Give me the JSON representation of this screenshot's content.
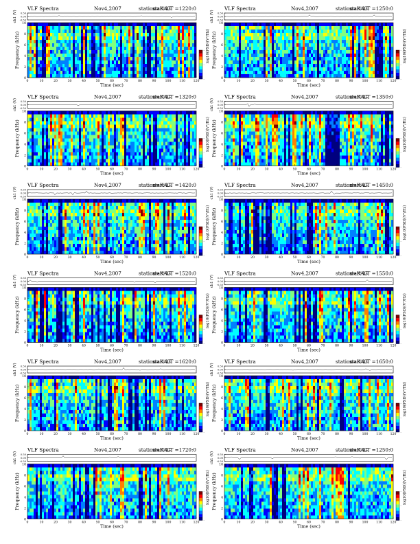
{
  "chart_data": [
    {
      "type": "heatmap",
      "title": "VLF Spectra",
      "date": "Nov4,2007",
      "station": "station=KAG",
      "start": "start  UT =1220:0",
      "trace_ylabel": "ch1 (V)",
      "trace_ticks": [
        "0.50",
        "0.00",
        "-0.50"
      ],
      "ylabel": "Frequency (kHz)",
      "yticks": [
        "0",
        "2",
        "4",
        "6",
        "8",
        "10"
      ],
      "ylim": [
        0,
        10
      ],
      "xlabel": "Time (sec)",
      "xticks": [
        "0",
        "10",
        "20",
        "30",
        "40",
        "50",
        "60",
        "70",
        "80",
        "90",
        "100",
        "110",
        "120"
      ],
      "xlim": [
        0,
        120
      ],
      "colorbar_label": "log10(PSD)(V²/Hz)",
      "colorbar_ticks": [
        "-",
        "-",
        "-"
      ]
    },
    {
      "type": "heatmap",
      "title": "VLF Spectra",
      "date": "Nov4,2007",
      "station": "station=KAG",
      "start": "start  UT =1250:0",
      "trace_ylabel": "ch1 (V)",
      "trace_ticks": [
        "0.50",
        "0.00",
        "-0.50"
      ],
      "ylabel": "Frequency (kHz)",
      "yticks": [
        "0",
        "2",
        "4",
        "6",
        "8",
        "10"
      ],
      "ylim": [
        0,
        10
      ],
      "xlabel": "Time (sec)",
      "xticks": [
        "0",
        "10",
        "20",
        "30",
        "40",
        "50",
        "60",
        "70",
        "80",
        "90",
        "100",
        "110",
        "120"
      ],
      "xlim": [
        0,
        120
      ],
      "colorbar_label": "log10(PSD)(V²/Hz)",
      "colorbar_ticks": [
        "-",
        "-",
        "-"
      ]
    },
    {
      "type": "heatmap",
      "title": "VLF Spectra",
      "date": "Nov4,2007",
      "station": "station=KAG",
      "start": "start  UT =1320:0",
      "trace_ylabel": "ch1 (V)",
      "trace_ticks": [
        "0.50",
        "0.00",
        "-0.50"
      ],
      "ylabel": "Frequency (kHz)",
      "yticks": [
        "0",
        "2",
        "4",
        "6",
        "8",
        "10"
      ],
      "ylim": [
        0,
        10
      ],
      "xlabel": "Time (sec)",
      "xticks": [
        "0",
        "10",
        "20",
        "30",
        "40",
        "50",
        "60",
        "70",
        "80",
        "90",
        "100",
        "110",
        "120"
      ],
      "xlim": [
        0,
        120
      ],
      "colorbar_label": "log10(PSD)(V²/Hz)",
      "colorbar_ticks": [
        "-",
        "-",
        "-"
      ]
    },
    {
      "type": "heatmap",
      "title": "VLF Spectra",
      "date": "Nov4,2007",
      "station": "station=KAG",
      "start": "start  UT =1350:0",
      "trace_ylabel": "ch1 (V)",
      "trace_ticks": [
        "0.50",
        "0.00",
        "-0.50"
      ],
      "ylabel": "Frequency (kHz)",
      "yticks": [
        "0",
        "2",
        "4",
        "6",
        "8",
        "10"
      ],
      "ylim": [
        0,
        10
      ],
      "xlabel": "Time (sec)",
      "xticks": [
        "0",
        "10",
        "20",
        "30",
        "40",
        "50",
        "60",
        "70",
        "80",
        "90",
        "100",
        "110",
        "120"
      ],
      "xlim": [
        0,
        120
      ],
      "colorbar_label": "log10(PSD)(V²/Hz)",
      "colorbar_ticks": [
        "-",
        "-",
        "-"
      ]
    },
    {
      "type": "heatmap",
      "title": "VLF Spectra",
      "date": "Nov4,2007",
      "station": "station=KAG",
      "start": "start  UT =1420:0",
      "trace_ylabel": "ch1 (V)",
      "trace_ticks": [
        "0.50",
        "0.00",
        "-0.50"
      ],
      "ylabel": "Frequency (kHz)",
      "yticks": [
        "0",
        "2",
        "4",
        "6",
        "8",
        "10"
      ],
      "ylim": [
        0,
        10
      ],
      "xlabel": "Time (sec)",
      "xticks": [
        "0",
        "10",
        "20",
        "30",
        "40",
        "50",
        "60",
        "70",
        "80",
        "90",
        "100",
        "110",
        "120"
      ],
      "xlim": [
        0,
        120
      ],
      "colorbar_label": "log10(PSD)(V²/Hz)",
      "colorbar_ticks": [
        "-",
        "-",
        "-"
      ]
    },
    {
      "type": "heatmap",
      "title": "VLF Spectra",
      "date": "Nov4,2007",
      "station": "station=KAG",
      "start": "start  UT =1450:0",
      "trace_ylabel": "ch1 (V)",
      "trace_ticks": [
        "0.50",
        "0.00",
        "-0.50"
      ],
      "ylabel": "Frequency (kHz)",
      "yticks": [
        "0",
        "2",
        "4",
        "6",
        "8",
        "10"
      ],
      "ylim": [
        0,
        10
      ],
      "xlabel": "Time (sec)",
      "xticks": [
        "0",
        "10",
        "20",
        "30",
        "40",
        "50",
        "60",
        "70",
        "80",
        "90",
        "100",
        "110",
        "120"
      ],
      "xlim": [
        0,
        120
      ],
      "colorbar_label": "log10(PSD)(V²/Hz)",
      "colorbar_ticks": [
        "-",
        "-",
        "-"
      ]
    },
    {
      "type": "heatmap",
      "title": "VLF Spectra",
      "date": "Nov4,2007",
      "station": "station=KAG",
      "start": "start  UT =1520:0",
      "trace_ylabel": "ch1 (V)",
      "trace_ticks": [
        "0.50",
        "0.00",
        "-0.50"
      ],
      "ylabel": "Frequency (kHz)",
      "yticks": [
        "0",
        "2",
        "4",
        "6",
        "8",
        "10"
      ],
      "ylim": [
        0,
        10
      ],
      "xlabel": "Time (sec)",
      "xticks": [
        "0",
        "10",
        "20",
        "30",
        "40",
        "50",
        "60",
        "70",
        "80",
        "90",
        "100",
        "110",
        "120"
      ],
      "xlim": [
        0,
        120
      ],
      "colorbar_label": "log10(PSD)(V²/Hz)",
      "colorbar_ticks": [
        "-",
        "-",
        "-"
      ]
    },
    {
      "type": "heatmap",
      "title": "VLF Spectra",
      "date": "Nov4,2007",
      "station": "station=KAG",
      "start": "start  UT =1550:0",
      "trace_ylabel": "ch1 (V)",
      "trace_ticks": [
        "0.50",
        "0.00",
        "-0.50"
      ],
      "ylabel": "Frequency (kHz)",
      "yticks": [
        "0",
        "2",
        "4",
        "6",
        "8",
        "10"
      ],
      "ylim": [
        0,
        10
      ],
      "xlabel": "Time (sec)",
      "xticks": [
        "0",
        "10",
        "20",
        "30",
        "40",
        "50",
        "60",
        "70",
        "80",
        "90",
        "100",
        "110",
        "120"
      ],
      "xlim": [
        0,
        120
      ],
      "colorbar_label": "log10(PSD)(V²/Hz)",
      "colorbar_ticks": [
        "-",
        "-",
        "-"
      ]
    },
    {
      "type": "heatmap",
      "title": "VLF Spectra",
      "date": "Nov4,2007",
      "station": "station=KAG",
      "start": "start  UT =1620:0",
      "trace_ylabel": "ch1 (V)",
      "trace_ticks": [
        "0.50",
        "0.00",
        "-0.50"
      ],
      "ylabel": "Frequency (kHz)",
      "yticks": [
        "0",
        "2",
        "4",
        "6",
        "8",
        "10"
      ],
      "ylim": [
        0,
        10
      ],
      "xlabel": "Time (sec)",
      "xticks": [
        "0",
        "10",
        "20",
        "30",
        "40",
        "50",
        "60",
        "70",
        "80",
        "90",
        "100",
        "110",
        "120"
      ],
      "xlim": [
        0,
        120
      ],
      "colorbar_label": "log10(PSD)(V²/Hz)",
      "colorbar_ticks": [
        "-",
        "-",
        "-"
      ]
    },
    {
      "type": "heatmap",
      "title": "VLF Spectra",
      "date": "Nov4,2007",
      "station": "station=KAG",
      "start": "start  UT =1650:0",
      "trace_ylabel": "ch1 (V)",
      "trace_ticks": [
        "0.50",
        "0.00",
        "-0.50"
      ],
      "ylabel": "Frequency (kHz)",
      "yticks": [
        "0",
        "2",
        "4",
        "6",
        "8",
        "10"
      ],
      "ylim": [
        0,
        10
      ],
      "xlabel": "Time (sec)",
      "xticks": [
        "0",
        "10",
        "20",
        "30",
        "40",
        "50",
        "60",
        "70",
        "80",
        "90",
        "100",
        "110",
        "120"
      ],
      "xlim": [
        0,
        120
      ],
      "colorbar_label": "log10(PSD)(V²/Hz)",
      "colorbar_ticks": [
        "-",
        "-",
        "-"
      ]
    },
    {
      "type": "heatmap",
      "title": "VLF Spectra",
      "date": "Nov4,2007",
      "station": "station=KAG",
      "start": "start  UT =1720:0",
      "trace_ylabel": "ch1 (V)",
      "trace_ticks": [
        "0.50",
        "0.00",
        "-0.50"
      ],
      "ylabel": "Frequency (kHz)",
      "yticks": [
        "0",
        "2",
        "4",
        "6",
        "8",
        "10"
      ],
      "ylim": [
        0,
        10
      ],
      "xlabel": "Time (sec)",
      "xticks": [
        "0",
        "10",
        "20",
        "30",
        "40",
        "50",
        "60",
        "70",
        "80",
        "90",
        "100",
        "110",
        "120"
      ],
      "xlim": [
        0,
        120
      ],
      "colorbar_label": "log10(PSD)(V²/Hz)",
      "colorbar_ticks": [
        "-",
        "-",
        "-"
      ]
    },
    {
      "type": "heatmap",
      "title": "VLF Spectra",
      "date": "Nov4,2007",
      "station": "station=KAG",
      "start": "start  UT =1250:0",
      "trace_ylabel": "ch1 (V)",
      "trace_ticks": [
        "0.50",
        "0.00",
        "-0.50"
      ],
      "ylabel": "Frequency (kHz)",
      "yticks": [
        "0",
        "2",
        "4",
        "6",
        "8",
        "10"
      ],
      "ylim": [
        0,
        10
      ],
      "xlabel": "Time (sec)",
      "xticks": [
        "0",
        "10",
        "20",
        "30",
        "40",
        "50",
        "60",
        "70",
        "80",
        "90",
        "100",
        "110",
        "120"
      ],
      "xlim": [
        0,
        120
      ],
      "colorbar_label": "log10(PSD)(V²/Hz)",
      "colorbar_ticks": [
        "-",
        "-",
        "-"
      ]
    }
  ],
  "colors": {
    "spectrum_scale": [
      "#00007f",
      "#0000ff",
      "#0080ff",
      "#00ffff",
      "#80ff80",
      "#ffff00",
      "#ff8000",
      "#ff0000",
      "#7f0000"
    ],
    "background": "#ffffff",
    "ink": "#000000"
  }
}
